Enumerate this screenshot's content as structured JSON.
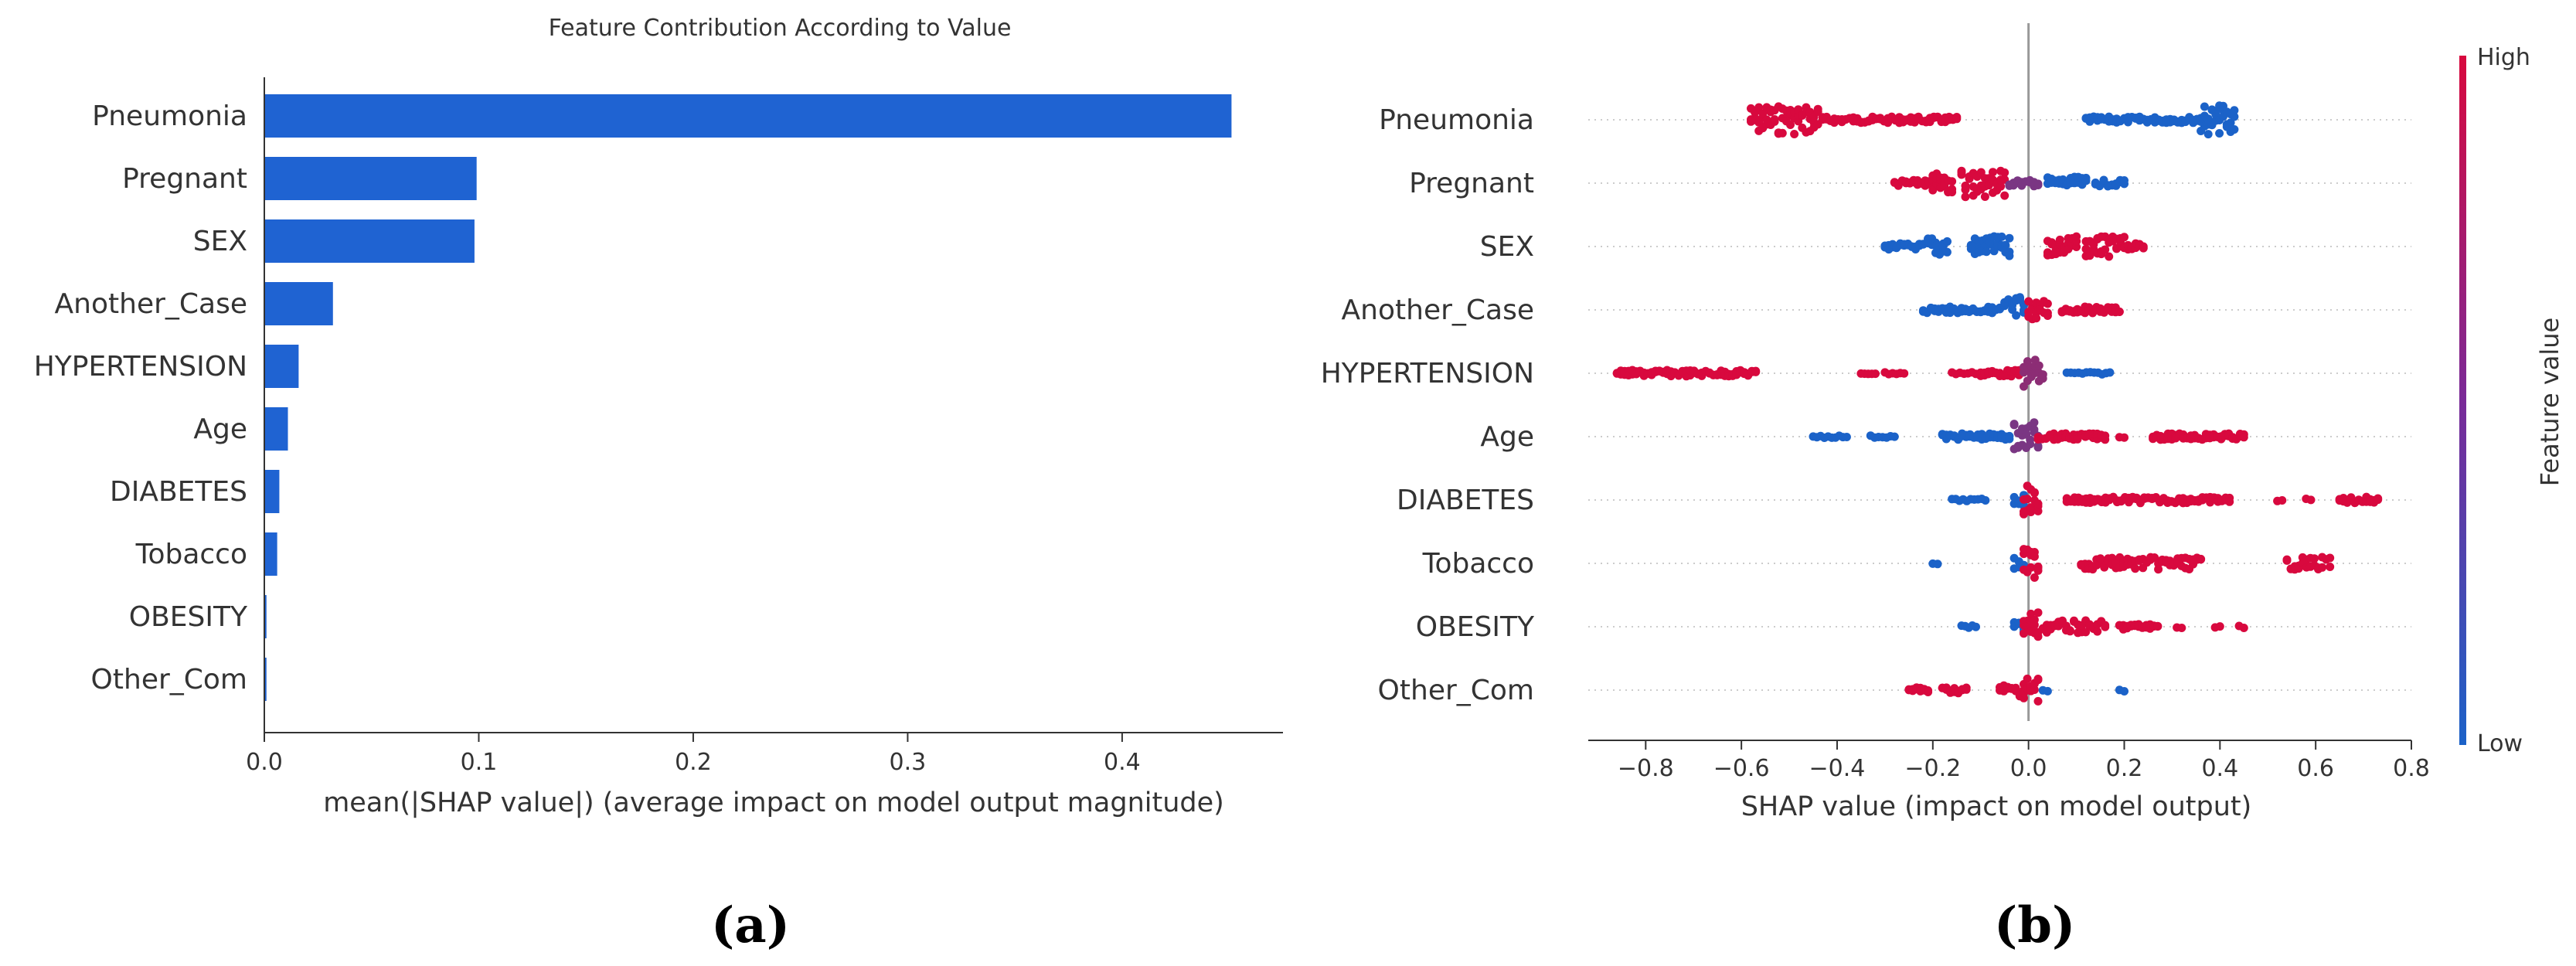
{
  "chart_data": [
    {
      "type": "bar",
      "orientation": "horizontal",
      "title": "Feature Contribution According to Value",
      "xlabel": "mean(|SHAP value|) (average impact on model output magnitude)",
      "ylabel": "",
      "xlim": [
        0,
        0.475
      ],
      "xticks": [
        "0.0",
        "0.1",
        "0.2",
        "0.3",
        "0.4"
      ],
      "categories": [
        "Pneumonia",
        "Pregnant",
        "SEX",
        "Another_Case",
        "HYPERTENSION",
        "Age",
        "DIABETES",
        "Tobacco",
        "OBESITY",
        "Other_Com"
      ],
      "values": [
        0.451,
        0.099,
        0.098,
        0.032,
        0.016,
        0.011,
        0.007,
        0.006,
        0.001,
        0.001
      ],
      "bar_color": "#1f63d2",
      "grid": false
    },
    {
      "type": "scatter",
      "subtype": "beeswarm",
      "title": "",
      "xlabel": "SHAP value (impact on model output)",
      "ylabel": "",
      "xlim": [
        -0.92,
        0.8
      ],
      "xticks": [
        "−0.8",
        "−0.6",
        "−0.4",
        "−0.2",
        "0.0",
        "0.2",
        "0.4",
        "0.6",
        "0.8"
      ],
      "categories": [
        "Pneumonia",
        "Pregnant",
        "SEX",
        "Another_Case",
        "HYPERTENSION",
        "Age",
        "DIABETES",
        "Tobacco",
        "OBESITY",
        "Other_Com"
      ],
      "colorbar": {
        "label": "Feature value",
        "high": "High",
        "low": "Low",
        "high_color": "#d8093e",
        "low_color": "#1b62c8"
      },
      "points": [
        {
          "feature": "Pneumonia",
          "clusters": [
            {
              "from": -0.58,
              "to": -0.44,
              "level": 1,
              "density": 5
            },
            {
              "from": -0.43,
              "to": -0.15,
              "level": 1,
              "density": 2
            },
            {
              "from": 0.12,
              "to": 0.36,
              "level": 0,
              "density": 2
            },
            {
              "from": 0.36,
              "to": 0.43,
              "level": 0,
              "density": 5
            }
          ]
        },
        {
          "feature": "Pregnant",
          "clusters": [
            {
              "from": -0.28,
              "to": -0.2,
              "level": 1,
              "density": 2
            },
            {
              "from": -0.2,
              "to": -0.16,
              "level": 1,
              "density": 4
            },
            {
              "from": -0.14,
              "to": -0.05,
              "level": 1,
              "density": 5
            },
            {
              "from": -0.04,
              "to": 0.02,
              "level": 0.5,
              "density": 2
            },
            {
              "from": 0.04,
              "to": 0.12,
              "level": 0,
              "density": 3
            },
            {
              "from": 0.14,
              "to": 0.2,
              "level": 0,
              "density": 2
            }
          ]
        },
        {
          "feature": "SEX",
          "clusters": [
            {
              "from": -0.3,
              "to": -0.22,
              "level": 0,
              "density": 2
            },
            {
              "from": -0.21,
              "to": -0.17,
              "level": 0,
              "density": 4
            },
            {
              "from": -0.12,
              "to": -0.04,
              "level": 0,
              "density": 4
            },
            {
              "from": 0.04,
              "to": 0.1,
              "level": 1,
              "density": 4
            },
            {
              "from": 0.12,
              "to": 0.2,
              "level": 1,
              "density": 4
            },
            {
              "from": 0.2,
              "to": 0.24,
              "level": 1,
              "density": 2
            }
          ]
        },
        {
          "feature": "Another_Case",
          "clusters": [
            {
              "from": -0.22,
              "to": -0.06,
              "level": 0,
              "density": 2
            },
            {
              "from": -0.05,
              "to": -0.01,
              "level": 0,
              "density": 5
            },
            {
              "from": 0.0,
              "to": 0.04,
              "level": 1,
              "density": 4
            },
            {
              "from": 0.07,
              "to": 0.19,
              "level": 1,
              "density": 2
            }
          ]
        },
        {
          "feature": "HYPERTENSION",
          "clusters": [
            {
              "from": -0.86,
              "to": -0.57,
              "level": 1,
              "density": 2
            },
            {
              "from": -0.35,
              "to": -0.32,
              "level": 1,
              "density": 1
            },
            {
              "from": -0.3,
              "to": -0.26,
              "level": 1,
              "density": 1
            },
            {
              "from": -0.16,
              "to": -0.11,
              "level": 1,
              "density": 1
            },
            {
              "from": -0.1,
              "to": -0.02,
              "level": 1,
              "density": 2
            },
            {
              "from": -0.01,
              "to": 0.03,
              "level": 0.6,
              "density": 5
            },
            {
              "from": 0.08,
              "to": 0.17,
              "level": 0,
              "density": 1
            }
          ]
        },
        {
          "feature": "Age",
          "clusters": [
            {
              "from": -0.45,
              "to": -0.38,
              "level": 0,
              "density": 1
            },
            {
              "from": -0.33,
              "to": -0.28,
              "level": 0,
              "density": 1
            },
            {
              "from": -0.18,
              "to": -0.04,
              "level": 0,
              "density": 2
            },
            {
              "from": -0.03,
              "to": 0.02,
              "level": 0.5,
              "density": 5
            },
            {
              "from": 0.02,
              "to": 0.16,
              "level": 1,
              "density": 2
            },
            {
              "from": 0.19,
              "to": 0.2,
              "level": 1,
              "density": 1
            },
            {
              "from": 0.26,
              "to": 0.45,
              "level": 1,
              "density": 2
            }
          ]
        },
        {
          "feature": "DIABETES",
          "clusters": [
            {
              "from": -0.16,
              "to": -0.09,
              "level": 0,
              "density": 1
            },
            {
              "from": -0.03,
              "to": -0.01,
              "level": 0,
              "density": 3
            },
            {
              "from": -0.01,
              "to": 0.02,
              "level": 1,
              "density": 5
            },
            {
              "from": 0.08,
              "to": 0.42,
              "level": 1,
              "density": 2
            },
            {
              "from": 0.52,
              "to": 0.53,
              "level": 1,
              "density": 1
            },
            {
              "from": 0.58,
              "to": 0.59,
              "level": 1,
              "density": 1
            },
            {
              "from": 0.65,
              "to": 0.73,
              "level": 1,
              "density": 2
            }
          ]
        },
        {
          "feature": "Tobacco",
          "clusters": [
            {
              "from": -0.2,
              "to": -0.19,
              "level": 0,
              "density": 1
            },
            {
              "from": -0.03,
              "to": -0.01,
              "level": 0,
              "density": 3
            },
            {
              "from": -0.01,
              "to": 0.02,
              "level": 1,
              "density": 5
            },
            {
              "from": 0.11,
              "to": 0.36,
              "level": 1,
              "density": 3
            },
            {
              "from": 0.54,
              "to": 0.63,
              "level": 1,
              "density": 3
            }
          ]
        },
        {
          "feature": "OBESITY",
          "clusters": [
            {
              "from": -0.14,
              "to": -0.11,
              "level": 0,
              "density": 1
            },
            {
              "from": -0.03,
              "to": -0.01,
              "level": 0,
              "density": 3
            },
            {
              "from": -0.01,
              "to": 0.02,
              "level": 1,
              "density": 5
            },
            {
              "from": 0.03,
              "to": 0.16,
              "level": 1,
              "density": 3
            },
            {
              "from": 0.19,
              "to": 0.27,
              "level": 1,
              "density": 2
            },
            {
              "from": 0.31,
              "to": 0.32,
              "level": 1,
              "density": 1
            },
            {
              "from": 0.39,
              "to": 0.4,
              "level": 1,
              "density": 1
            },
            {
              "from": 0.44,
              "to": 0.45,
              "level": 1,
              "density": 1
            }
          ]
        },
        {
          "feature": "Other_Com",
          "clusters": [
            {
              "from": -0.25,
              "to": -0.21,
              "level": 1,
              "density": 2
            },
            {
              "from": -0.18,
              "to": -0.13,
              "level": 1,
              "density": 2
            },
            {
              "from": -0.06,
              "to": -0.01,
              "level": 1,
              "density": 3
            },
            {
              "from": -0.01,
              "to": 0.02,
              "level": 1,
              "density": 5
            },
            {
              "from": 0.03,
              "to": 0.04,
              "level": 0,
              "density": 1
            },
            {
              "from": 0.19,
              "to": 0.2,
              "level": 0,
              "density": 1
            }
          ]
        }
      ]
    }
  ],
  "labels": {
    "panel_a": "(a)",
    "panel_b": "(b)"
  }
}
